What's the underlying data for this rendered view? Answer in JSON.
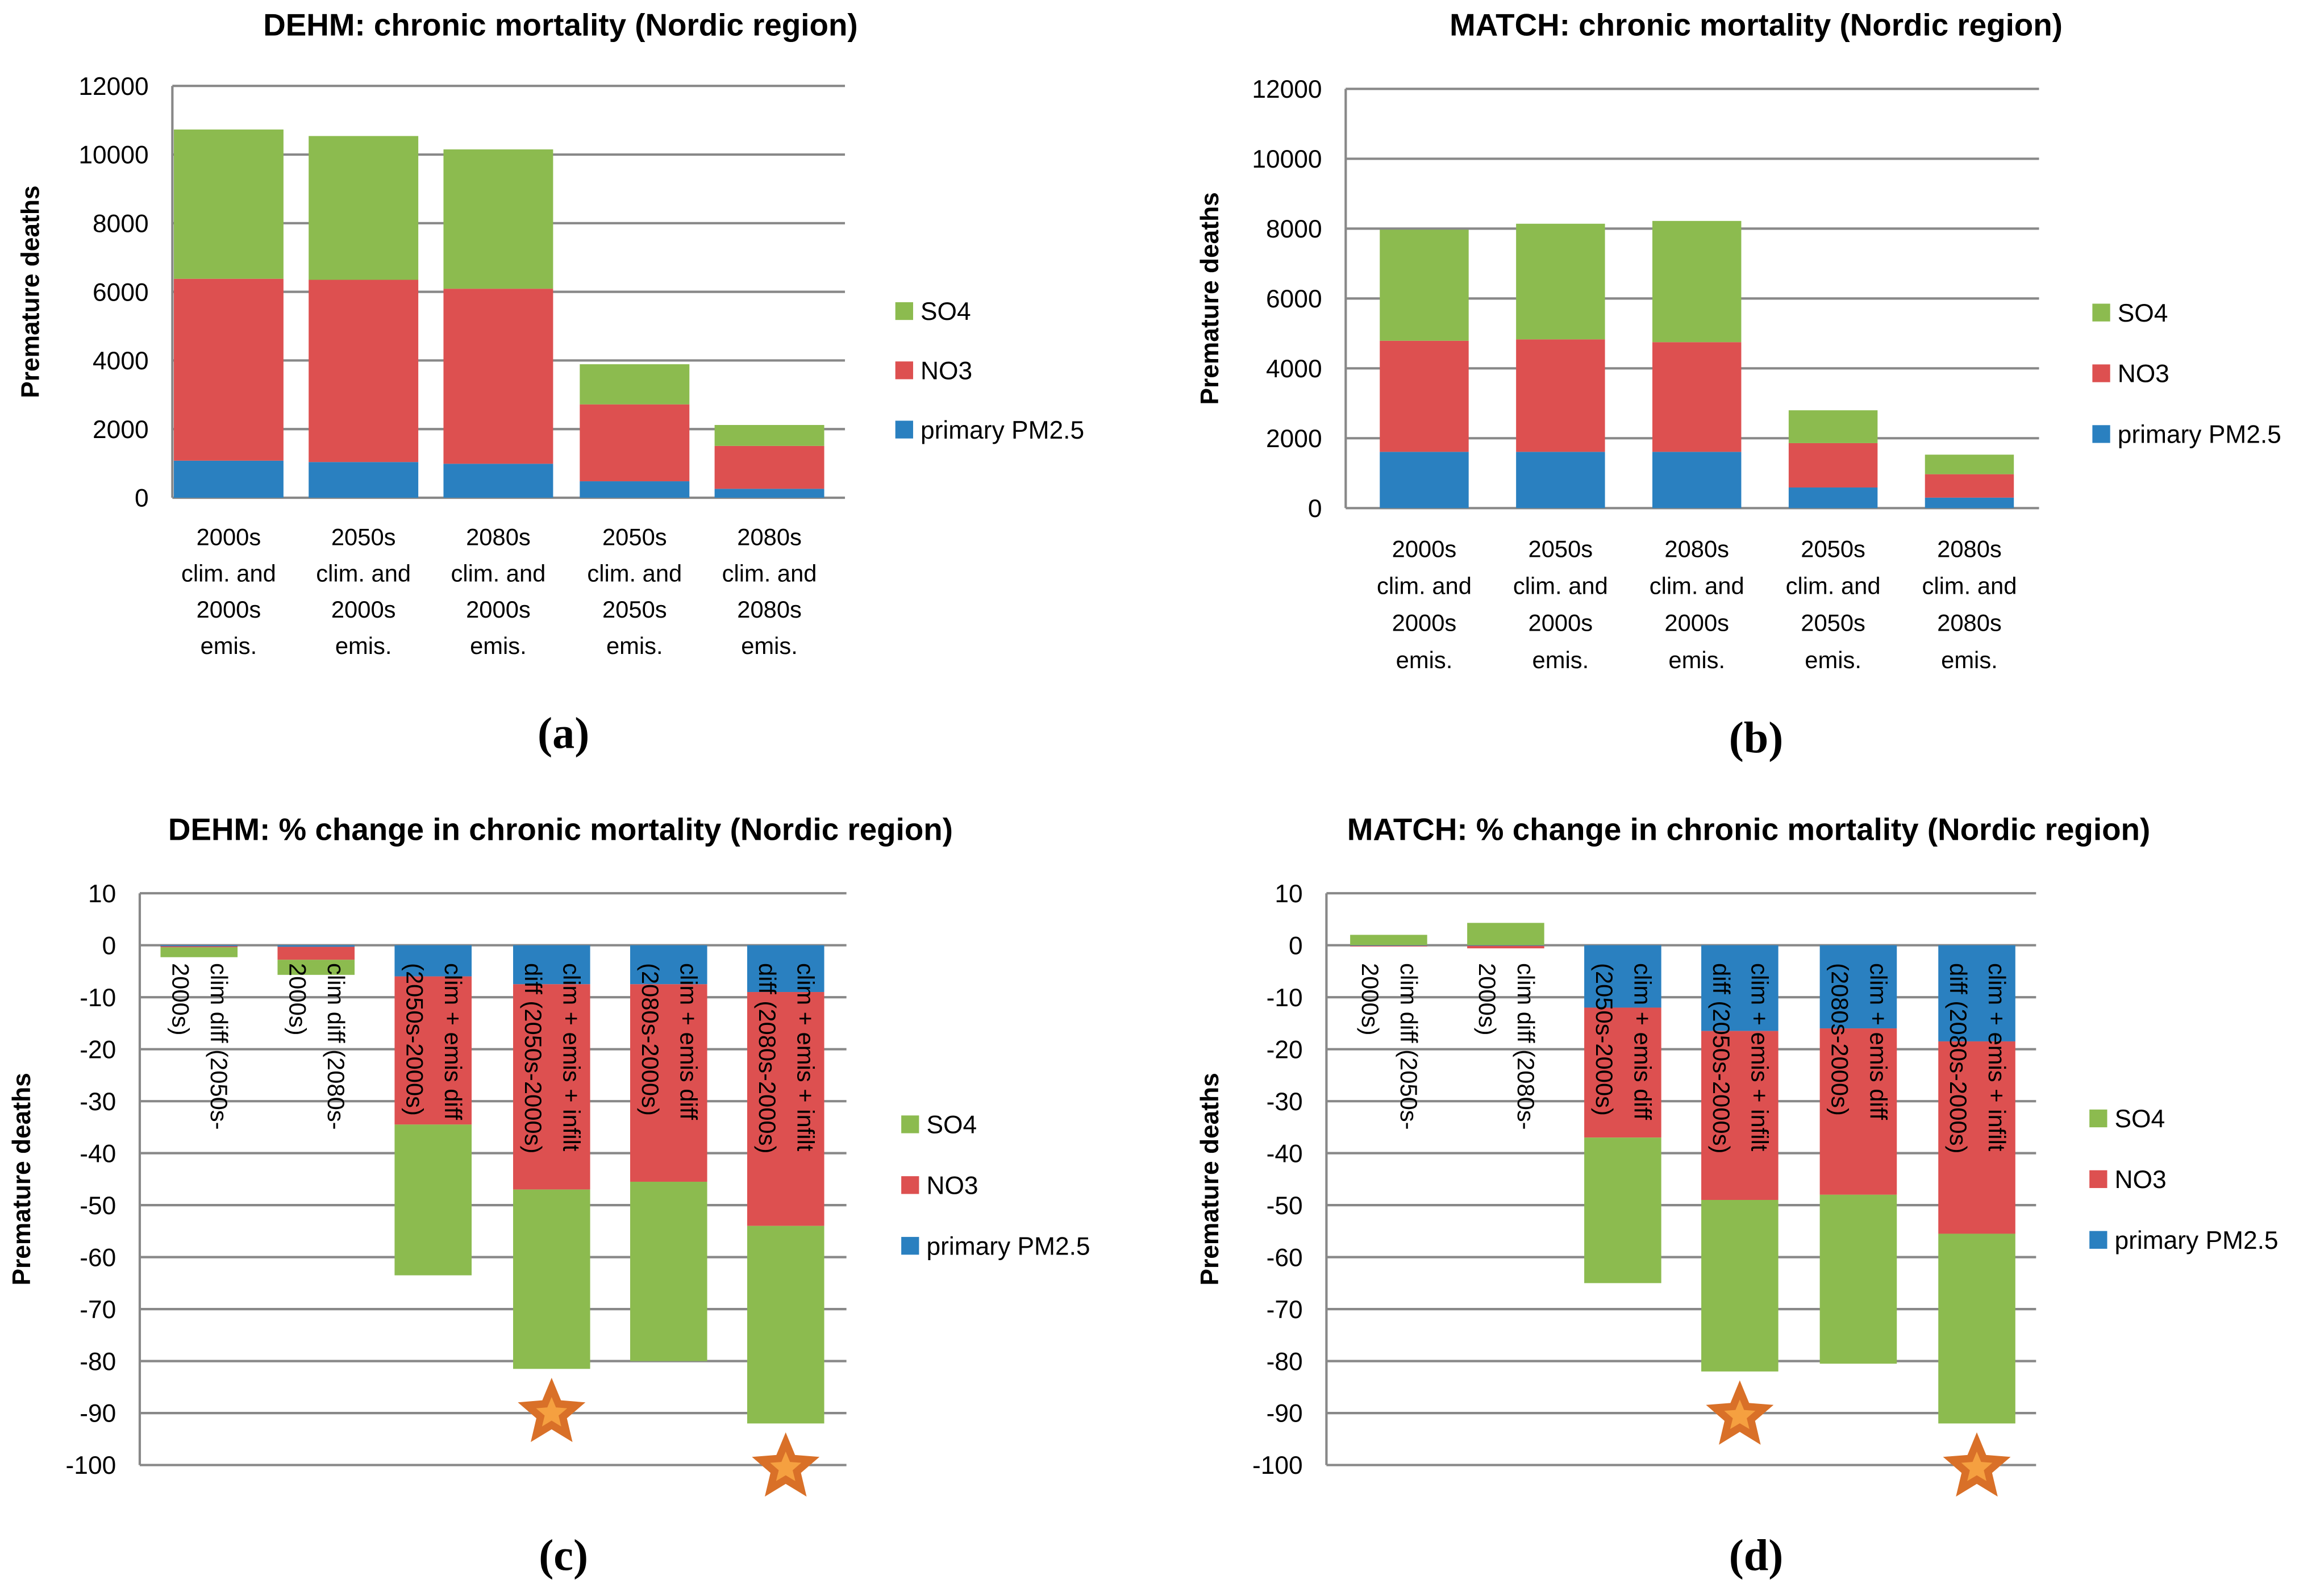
{
  "colors": {
    "SO4": "#8CBB4F",
    "NO3": "#DD5050",
    "primary PM2.5": "#2A80C0",
    "grid": "#888888",
    "star": "#D97028",
    "star_inner": "#F5A040"
  },
  "chart_data": [
    {
      "panel_label": "(a)",
      "type": "bar",
      "stacked": true,
      "title": "DEHM: chronic mortality (Nordic region)",
      "ylabel": "Premature deaths",
      "xlabel": "",
      "ylim": [
        0,
        12000
      ],
      "yticks": [
        "0",
        "2000",
        "4000",
        "6000",
        "8000",
        "10000",
        "12000"
      ],
      "grid": true,
      "legend_position": "right",
      "legend": [
        "SO4",
        "NO3",
        "primary PM2.5"
      ],
      "categories": [
        [
          "2000s",
          "clim. and",
          "2000s",
          "emis."
        ],
        [
          "2050s",
          "clim. and",
          "2000s",
          "emis."
        ],
        [
          "2080s",
          "clim. and",
          "2000s",
          "emis."
        ],
        [
          "2050s",
          "clim. and",
          "2050s",
          "emis."
        ],
        [
          "2080s",
          "clim. and",
          "2080s",
          "emis."
        ]
      ],
      "series": [
        {
          "name": "primary PM2.5",
          "values": [
            1080,
            1040,
            990,
            480,
            260
          ]
        },
        {
          "name": "NO3",
          "values": [
            5300,
            5310,
            5100,
            2240,
            1250
          ]
        },
        {
          "name": "SO4",
          "values": [
            4350,
            4190,
            4060,
            1170,
            610
          ]
        }
      ]
    },
    {
      "panel_label": "(b)",
      "type": "bar",
      "stacked": true,
      "title": "MATCH: chronic mortality (Nordic region)",
      "ylabel": "Premature deaths",
      "xlabel": "",
      "ylim": [
        0,
        12000
      ],
      "yticks": [
        "0",
        "2000",
        "4000",
        "6000",
        "8000",
        "10000",
        "12000"
      ],
      "grid": true,
      "legend_position": "right",
      "legend": [
        "SO4",
        "NO3",
        "primary PM2.5"
      ],
      "categories": [
        [
          "2000s",
          "clim. and",
          "2000s",
          "emis."
        ],
        [
          "2050s",
          "clim. and",
          "2000s",
          "emis."
        ],
        [
          "2080s",
          "clim. and",
          "2000s",
          "emis."
        ],
        [
          "2050s",
          "clim. and",
          "2050s",
          "emis."
        ],
        [
          "2080s",
          "clim. and",
          "2080s",
          "emis."
        ]
      ],
      "series": [
        {
          "name": "primary PM2.5",
          "values": [
            1610,
            1610,
            1610,
            590,
            300
          ]
        },
        {
          "name": "NO3",
          "values": [
            3180,
            3220,
            3140,
            1270,
            670
          ]
        },
        {
          "name": "SO4",
          "values": [
            3180,
            3310,
            3470,
            940,
            560
          ]
        }
      ]
    },
    {
      "panel_label": "(c)",
      "type": "bar",
      "stacked": true,
      "title": "DEHM: % change in chronic mortality (Nordic region)",
      "ylabel": "Premature deaths",
      "xlabel": "",
      "ylim": [
        -100,
        10
      ],
      "yticks": [
        "-100",
        "-90",
        "-80",
        "-70",
        "-60",
        "-50",
        "-40",
        "-30",
        "-20",
        "-10",
        "0",
        "10"
      ],
      "grid": true,
      "legend_position": "right",
      "legend": [
        "SO4",
        "NO3",
        "primary PM2.5"
      ],
      "categories": [
        [
          "clim diff (2050s-",
          "2000s)"
        ],
        [
          "clim diff (2080s-",
          "2000s)"
        ],
        [
          "clim + emis diff",
          "(2050s-2000s)"
        ],
        [
          "clim + emis + infilt",
          "diff (2050s-2000s)"
        ],
        [
          "clim + emis diff",
          "(2080s-2000s)"
        ],
        [
          "clim + emis + infilt",
          "diff (2080s-2000s)"
        ]
      ],
      "series": [
        {
          "name": "primary PM2.5",
          "values": [
            -0.2,
            -0.3,
            -6,
            -7.5,
            -7.5,
            -9
          ]
        },
        {
          "name": "NO3",
          "values": [
            -0.2,
            -2.5,
            -28.5,
            -39.5,
            -38,
            -45
          ]
        },
        {
          "name": "SO4",
          "values": [
            -1.9,
            -2.9,
            -29,
            -34.5,
            -34.5,
            -38
          ]
        }
      ],
      "starred_categories": [
        3,
        5
      ]
    },
    {
      "panel_label": "(d)",
      "type": "bar",
      "stacked": true,
      "title": "MATCH: % change in chronic mortality (Nordic region)",
      "ylabel": "Premature deaths",
      "xlabel": "",
      "ylim": [
        -100,
        10
      ],
      "yticks": [
        "-100",
        "-90",
        "-80",
        "-70",
        "-60",
        "-50",
        "-40",
        "-30",
        "-20",
        "-10",
        "0",
        "10"
      ],
      "grid": true,
      "legend_position": "right",
      "legend": [
        "SO4",
        "NO3",
        "primary PM2.5"
      ],
      "categories": [
        [
          "clim diff (2050s-",
          "2000s)"
        ],
        [
          "clim diff (2080s-",
          "2000s)"
        ],
        [
          "clim + emis diff",
          "(2050s-2000s)"
        ],
        [
          "clim + emis + infilt",
          "diff (2050s-2000s)"
        ],
        [
          "clim + emis diff",
          "(2080s-2000s)"
        ],
        [
          "clim + emis + infilt",
          "diff (2080s-2000s)"
        ]
      ],
      "series": [
        {
          "name": "primary PM2.5",
          "values": [
            -0.1,
            -0.1,
            -12,
            -16.5,
            -16,
            -18.5
          ]
        },
        {
          "name": "NO3",
          "values": [
            -0.1,
            -0.5,
            -25,
            -32.5,
            -32,
            -37
          ]
        },
        {
          "name": "SO4",
          "values": [
            2,
            4.3,
            -28,
            -33,
            -32.5,
            -36.5
          ]
        }
      ],
      "starred_categories": [
        3,
        5
      ]
    }
  ]
}
